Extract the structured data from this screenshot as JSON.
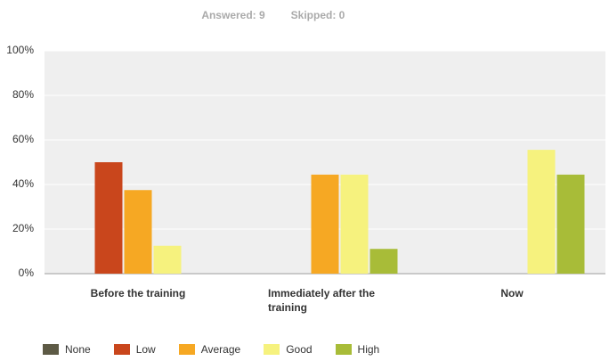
{
  "chart_data": {
    "type": "bar",
    "answered": "Answered: 9",
    "skipped": "Skipped: 0",
    "categories": [
      "Before the training",
      "Immediately after the training",
      "Now"
    ],
    "series": [
      {
        "name": "None",
        "color": "#5d5a45",
        "values": [
          0,
          0,
          0
        ]
      },
      {
        "name": "Low",
        "color": "#c9461c",
        "values": [
          50,
          0,
          0
        ]
      },
      {
        "name": "Average",
        "color": "#f6a823",
        "values": [
          37.5,
          44.44,
          0
        ]
      },
      {
        "name": "Good",
        "color": "#f6f27e",
        "values": [
          12.5,
          44.44,
          55.56
        ]
      },
      {
        "name": "High",
        "color": "#a8bc38",
        "values": [
          0,
          11.11,
          44.44
        ]
      }
    ],
    "ylim": [
      0,
      100
    ],
    "yticks": [
      {
        "value": 0,
        "label": "0%"
      },
      {
        "value": 20,
        "label": "20%"
      },
      {
        "value": 40,
        "label": "40%"
      },
      {
        "value": 60,
        "label": "60%"
      },
      {
        "value": 80,
        "label": "80%"
      },
      {
        "value": 100,
        "label": "100%"
      }
    ],
    "grid": true
  }
}
